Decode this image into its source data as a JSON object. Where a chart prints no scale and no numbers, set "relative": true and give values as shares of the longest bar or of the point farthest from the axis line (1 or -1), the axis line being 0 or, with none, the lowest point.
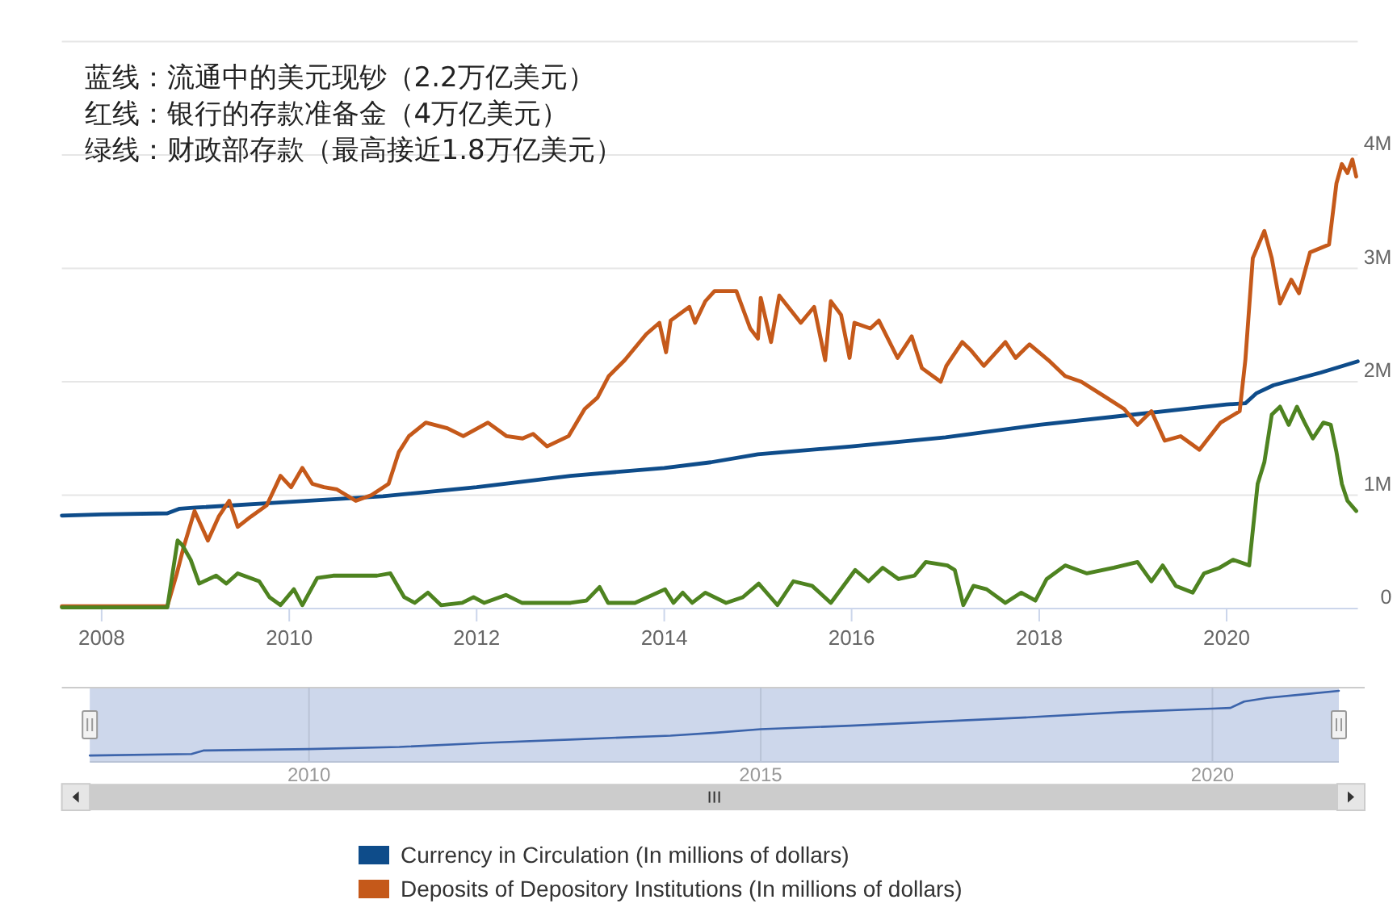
{
  "chart_data": [
    {
      "type": "line",
      "annotations": [
        "蓝线：流通中的美元现钞（2.2万亿美元）",
        "红线：银行的存款准备金（4万亿美元）",
        "绿线：财政部存款（最高接近1.8万亿美元）"
      ],
      "xlim": [
        "2007-07-30",
        "2021-05-26"
      ],
      "xticks": [
        {
          "value": "2008-01-01",
          "label": "2008"
        },
        {
          "value": "2010-01-01",
          "label": "2010"
        },
        {
          "value": "2012-01-01",
          "label": "2012"
        },
        {
          "value": "2014-01-01",
          "label": "2014"
        },
        {
          "value": "2016-01-01",
          "label": "2016"
        },
        {
          "value": "2018-01-01",
          "label": "2018"
        },
        {
          "value": "2020-01-01",
          "label": "2020"
        }
      ],
      "ylim": [
        0,
        5000000
      ],
      "yticks": [
        0,
        {
          "value": 1000000,
          "label": "1M"
        },
        {
          "value": 2000000,
          "label": "2M"
        },
        {
          "value": 3000000,
          "label": "3M"
        },
        {
          "value": 4000000,
          "label": "4M"
        },
        {
          "value": 5000000,
          "label": null
        }
      ],
      "grid": "y",
      "legend": "bottom",
      "series": [
        {
          "name": "Currency in Circulation (In millions of dollars)",
          "color": "#0e4c8a",
          "x": [
            "2007-07-30",
            "2008-01-01",
            "2008-09-13",
            "2008-10-31",
            "2009-01-01",
            "2010-01-01",
            "2011-01-01",
            "2012-01-01",
            "2013-01-01",
            "2014-01-01",
            "2014-07-02",
            "2015-01-01",
            "2016-01-01",
            "2017-01-01",
            "2018-01-01",
            "2019-01-01",
            "2020-01-01",
            "2020-03-14",
            "2020-04-27",
            "2020-07-02",
            "2021-01-01",
            "2021-05-26"
          ],
          "values": [
            820000,
            830000,
            840000,
            880000,
            890000,
            940000,
            990000,
            1070000,
            1170000,
            1240000,
            1290000,
            1360000,
            1430000,
            1510000,
            1620000,
            1710000,
            1800000,
            1810000,
            1900000,
            1970000,
            2080000,
            2180000
          ]
        },
        {
          "name": "Deposits of Depository Institutions (In millions of dollars)",
          "color": "#c5591a",
          "x": [
            "2007-07-30",
            "2008-09-13",
            "2008-10-19",
            "2008-11-14",
            "2008-12-28",
            "2009-02-18",
            "2009-04-01",
            "2009-05-12",
            "2009-06-14",
            "2009-08-04",
            "2009-10-05",
            "2009-11-28",
            "2010-01-08",
            "2010-02-21",
            "2010-04-01",
            "2010-05-16",
            "2010-07-06",
            "2010-09-17",
            "2010-11-17",
            "2011-01-23",
            "2011-03-04",
            "2011-04-12",
            "2011-06-17",
            "2011-09-09",
            "2011-11-10",
            "2012-02-14",
            "2012-04-27",
            "2012-06-28",
            "2012-08-08",
            "2012-10-01",
            "2012-12-24",
            "2013-02-25",
            "2013-04-16",
            "2013-05-30",
            "2013-07-31",
            "2013-10-23",
            "2013-12-13",
            "2014-01-08",
            "2014-01-26",
            "2014-04-09",
            "2014-05-01",
            "2014-06-10",
            "2014-07-16",
            "2014-10-09",
            "2014-12-02",
            "2015-01-01",
            "2015-01-12",
            "2015-02-21",
            "2015-03-25",
            "2015-06-17",
            "2015-08-08",
            "2015-09-20",
            "2015-10-12",
            "2015-11-21",
            "2015-12-24",
            "2016-01-12",
            "2016-03-14",
            "2016-04-16",
            "2016-06-28",
            "2016-08-22",
            "2016-10-01",
            "2016-12-13",
            "2017-01-04",
            "2017-03-07",
            "2017-04-09",
            "2017-05-30",
            "2017-08-22",
            "2017-10-01",
            "2017-11-24",
            "2018-02-06",
            "2018-04-12",
            "2018-06-14",
            "2018-09-06",
            "2018-11-28",
            "2019-01-19",
            "2019-03-14",
            "2019-05-05",
            "2019-07-06",
            "2019-09-17",
            "2019-12-09",
            "2020-02-21",
            "2020-03-14",
            "2020-04-12",
            "2020-05-27",
            "2020-06-25",
            "2020-07-27",
            "2020-09-09",
            "2020-10-09",
            "2020-11-21",
            "2021-02-03",
            "2021-03-04",
            "2021-03-25",
            "2021-04-16",
            "2021-05-05",
            "2021-05-20"
          ],
          "values": [
            20000,
            20000,
            300000,
            530000,
            860000,
            600000,
            810000,
            950000,
            720000,
            810000,
            910000,
            1170000,
            1070000,
            1240000,
            1100000,
            1070000,
            1050000,
            950000,
            1000000,
            1100000,
            1380000,
            1520000,
            1640000,
            1590000,
            1520000,
            1640000,
            1520000,
            1500000,
            1540000,
            1430000,
            1520000,
            1760000,
            1860000,
            2050000,
            2190000,
            2420000,
            2520000,
            2260000,
            2540000,
            2660000,
            2520000,
            2710000,
            2800000,
            2800000,
            2470000,
            2380000,
            2740000,
            2350000,
            2760000,
            2520000,
            2660000,
            2190000,
            2710000,
            2590000,
            2210000,
            2520000,
            2470000,
            2540000,
            2210000,
            2400000,
            2120000,
            2000000,
            2140000,
            2350000,
            2280000,
            2140000,
            2350000,
            2210000,
            2330000,
            2190000,
            2050000,
            2000000,
            1880000,
            1760000,
            1620000,
            1740000,
            1480000,
            1520000,
            1400000,
            1640000,
            1740000,
            2190000,
            3090000,
            3330000,
            3090000,
            2690000,
            2900000,
            2780000,
            3140000,
            3210000,
            3750000,
            3920000,
            3840000,
            3960000,
            3810000
          ]
        },
        {
          "color": "#4e8320",
          "x": [
            "2007-07-30",
            "2008-09-13",
            "2008-10-23",
            "2008-11-10",
            "2008-12-13",
            "2009-01-15",
            "2009-03-22",
            "2009-05-01",
            "2009-06-14",
            "2009-09-06",
            "2009-10-16",
            "2009-11-28",
            "2010-01-19",
            "2010-02-21",
            "2010-04-20",
            "2010-06-21",
            "2010-09-17",
            "2010-12-09",
            "2011-01-30",
            "2011-03-25",
            "2011-05-05",
            "2011-06-25",
            "2011-08-15",
            "2011-11-06",
            "2011-12-20",
            "2012-01-30",
            "2012-04-24",
            "2012-06-25",
            "2012-09-17",
            "2013-01-01",
            "2013-03-04",
            "2013-04-24",
            "2013-05-27",
            "2013-09-09",
            "2014-01-04",
            "2014-02-06",
            "2014-03-14",
            "2014-04-20",
            "2014-06-10",
            "2014-08-30",
            "2014-11-03",
            "2015-01-04",
            "2015-03-18",
            "2015-05-19",
            "2015-07-31",
            "2015-10-12",
            "2016-01-15",
            "2016-03-07",
            "2016-05-01",
            "2016-07-02",
            "2016-09-02",
            "2016-10-16",
            "2017-01-08",
            "2017-02-06",
            "2017-03-11",
            "2017-04-20",
            "2017-06-10",
            "2017-08-22",
            "2017-10-23",
            "2017-12-17",
            "2018-01-30",
            "2018-04-12",
            "2018-07-06",
            "2018-10-19",
            "2019-01-19",
            "2019-03-14",
            "2019-04-27",
            "2019-06-17",
            "2019-08-22",
            "2019-10-05",
            "2019-12-05",
            "2020-01-26",
            "2020-03-29",
            "2020-05-01",
            "2020-05-27",
            "2020-06-25",
            "2020-07-27",
            "2020-08-30",
            "2020-10-01",
            "2020-10-31",
            "2020-12-02",
            "2021-01-12",
            "2021-02-10",
            "2021-03-04",
            "2021-03-25",
            "2021-04-16",
            "2021-05-20"
          ],
          "values": [
            10000,
            10000,
            600000,
            560000,
            430000,
            220000,
            290000,
            220000,
            310000,
            240000,
            100000,
            30000,
            170000,
            30000,
            270000,
            290000,
            290000,
            290000,
            310000,
            100000,
            50000,
            140000,
            30000,
            50000,
            100000,
            50000,
            120000,
            50000,
            50000,
            50000,
            70000,
            190000,
            50000,
            50000,
            170000,
            50000,
            140000,
            50000,
            140000,
            50000,
            100000,
            220000,
            30000,
            240000,
            200000,
            50000,
            340000,
            240000,
            360000,
            260000,
            290000,
            410000,
            380000,
            340000,
            30000,
            200000,
            170000,
            50000,
            140000,
            70000,
            260000,
            380000,
            310000,
            360000,
            410000,
            240000,
            380000,
            200000,
            140000,
            310000,
            360000,
            430000,
            380000,
            1100000,
            1290000,
            1710000,
            1780000,
            1620000,
            1780000,
            1640000,
            1500000,
            1640000,
            1620000,
            1380000,
            1100000,
            950000,
            860000
          ]
        }
      ]
    },
    {
      "type": "line",
      "relative": true,
      "xlim": [
        "2007-07-30",
        "2021-05-26"
      ],
      "xticks": [
        {
          "value": "2010-01-01",
          "label": "2010"
        },
        {
          "value": "2015-01-01",
          "label": "2015"
        },
        {
          "value": "2020-01-01",
          "label": "2020"
        }
      ],
      "grid": "x",
      "series": [
        {
          "color": "#3c64ab",
          "x": [
            "2007-07-30",
            "2008-09-13",
            "2008-10-31",
            "2010-01-01",
            "2011-01-01",
            "2012-01-01",
            "2013-01-01",
            "2014-01-01",
            "2014-07-02",
            "2015-01-01",
            "2016-01-01",
            "2017-01-01",
            "2018-01-01",
            "2019-01-01",
            "2020-01-01",
            "2020-03-14",
            "2020-05-08",
            "2020-08-08",
            "2021-01-01",
            "2021-05-26"
          ],
          "values": [
            0.09,
            0.11,
            0.16,
            0.18,
            0.21,
            0.27,
            0.32,
            0.37,
            0.41,
            0.46,
            0.51,
            0.57,
            0.63,
            0.7,
            0.75,
            0.76,
            0.85,
            0.9,
            0.95,
            1
          ]
        }
      ]
    }
  ]
}
